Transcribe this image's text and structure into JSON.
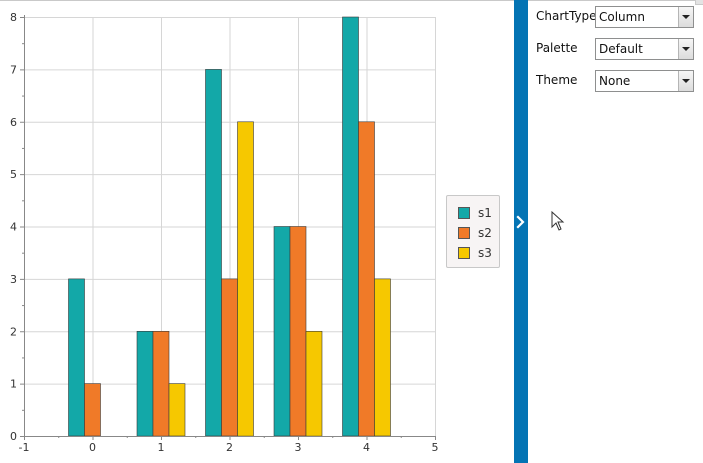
{
  "chart_data": {
    "type": "bar",
    "x": [
      0,
      1,
      2,
      3,
      4
    ],
    "series": [
      {
        "name": "s1",
        "values": [
          3,
          2,
          7,
          4,
          8
        ]
      },
      {
        "name": "s2",
        "values": [
          1,
          2,
          3,
          4,
          6
        ]
      },
      {
        "name": "s3",
        "values": [
          0,
          1,
          6,
          2,
          3
        ]
      }
    ],
    "xlim": [
      -1,
      5
    ],
    "ylim": [
      0,
      8
    ],
    "xticks": [
      -1,
      0,
      1,
      2,
      3,
      4,
      5
    ],
    "yticks": [
      0,
      1,
      2,
      3,
      4,
      5,
      6,
      7,
      8
    ],
    "grid": true,
    "legend": "right",
    "colors": [
      "#13a8a8",
      "#f07a28",
      "#f6c800"
    ]
  },
  "legend": {
    "items": [
      {
        "label": "s1",
        "color": "#13a8a8"
      },
      {
        "label": "s2",
        "color": "#f07a28"
      },
      {
        "label": "s3",
        "color": "#f6c800"
      }
    ]
  },
  "panel": {
    "chart_type": {
      "label": "ChartType",
      "value": "Column"
    },
    "palette": {
      "label": "Palette",
      "value": "Default"
    },
    "theme": {
      "label": "Theme",
      "value": "None"
    }
  },
  "colors": {
    "side_strip": "#0474b4"
  },
  "icons": {
    "expand": "chevron-right-icon",
    "cursor": "mouse-cursor-icon"
  }
}
